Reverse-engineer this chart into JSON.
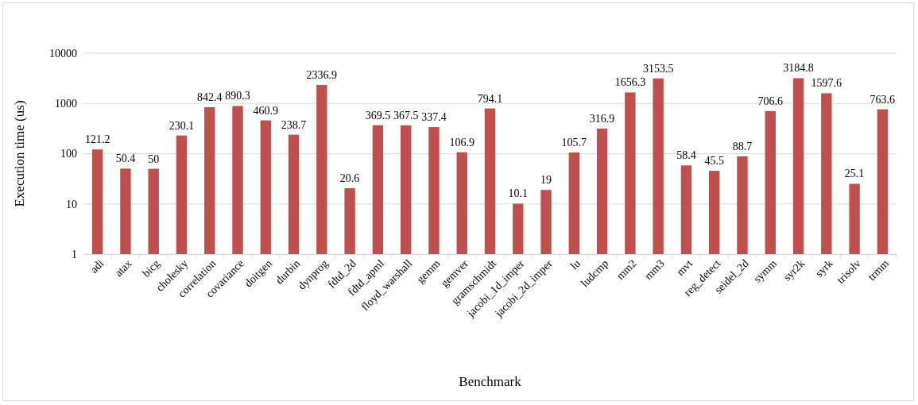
{
  "chart_data": {
    "type": "bar",
    "xlabel": "Benchmark",
    "ylabel": "Execution time (us)",
    "categories": [
      "adi",
      "atax",
      "bicg",
      "cholesky",
      "correlation",
      "covariance",
      "doitgen",
      "durbin",
      "dynprog",
      "fdtd_2d",
      "fdtd_apml",
      "floyd_warshall",
      "gemm",
      "gemver",
      "gramschmidt",
      "jacobi_1d_imper",
      "jacobi_2d_imper",
      "lu",
      "ludcmp",
      "mm2",
      "mm3",
      "mvt",
      "reg_detect",
      "seidel_2d",
      "symm",
      "syr2k",
      "syrk",
      "trisolv",
      "trmm"
    ],
    "values": [
      121.2,
      50.4,
      50,
      230.1,
      842.4,
      890.3,
      460.9,
      238.7,
      2336.9,
      20.6,
      369.5,
      367.5,
      337.4,
      106.9,
      794.1,
      10.1,
      19,
      105.7,
      316.9,
      1656.3,
      3153.5,
      58.4,
      45.5,
      88.7,
      706.6,
      3184.8,
      1597.6,
      25.1,
      763.6
    ],
    "color": "#c0504d",
    "log": true,
    "ylim": [
      1,
      10000
    ],
    "yticks": [
      1,
      10,
      100,
      1000,
      10000
    ],
    "grid": "y",
    "data_labels": true
  }
}
